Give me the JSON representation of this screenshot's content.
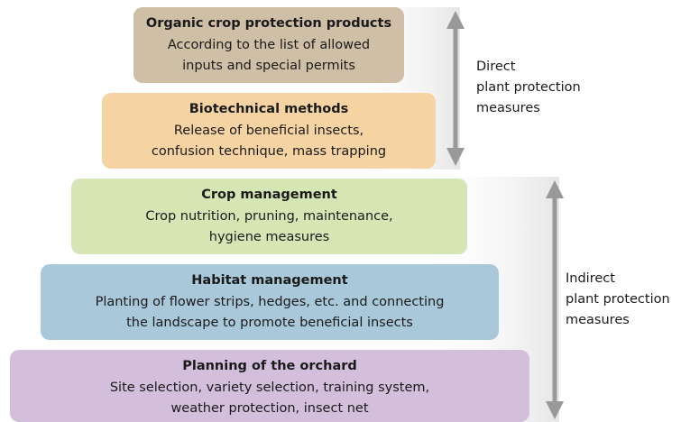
{
  "levels": [
    {
      "title": "Organic crop protection products",
      "lines": [
        "According to the list of allowed",
        "inputs and special permits"
      ]
    },
    {
      "title": "Biotechnical methods",
      "lines": [
        "Release of beneficial insects,",
        "confusion technique, mass trapping"
      ]
    },
    {
      "title": "Crop management",
      "lines": [
        "Crop nutrition, pruning, maintenance,",
        "hygiene measures"
      ]
    },
    {
      "title": "Habitat management",
      "lines": [
        "Planting of flower strips, hedges, etc. and connecting",
        "the landscape to promote beneficial insects"
      ]
    },
    {
      "title": "Planning of the orchard",
      "lines": [
        "Site selection, variety selection, training system,",
        "weather protection, insect net"
      ]
    }
  ],
  "groups": [
    {
      "lines": [
        "Direct",
        "plant protection",
        "measures"
      ]
    },
    {
      "lines": [
        "Indirect",
        "plant protection",
        "measures"
      ]
    }
  ]
}
